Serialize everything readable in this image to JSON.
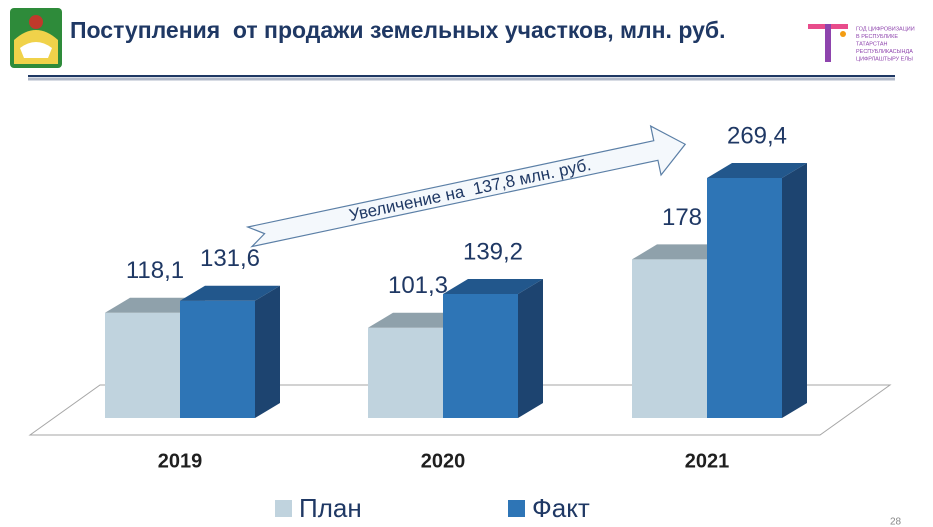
{
  "header": {
    "logo_lines": [
      "ГОД ЦИФРОВИЗАЦИИ",
      "В РЕСПУБЛИКЕ",
      "ТАТАРСТАН",
      "РЕСПУБЛИКАСЫНДА",
      "ЦИФРЛАШТЫРУ ЕЛЫ"
    ]
  },
  "chart_data": {
    "type": "bar3d",
    "title": "Поступления  от продажи земельных участков, млн. руб.",
    "annotation": "Увеличение на  137,8 млн. руб.",
    "categories": [
      "2019",
      "2020",
      "2021"
    ],
    "series": [
      {
        "name": "План",
        "color": "#c0d3de",
        "top_color": "#8fa1ab",
        "side_color": "#9fb2bd",
        "values": [
          118.1,
          101.3,
          178
        ],
        "value_labels": [
          "118,1",
          "101,3",
          "178"
        ]
      },
      {
        "name": "Факт",
        "color": "#2e75b6",
        "top_color": "#22578c",
        "side_color": "#1d4470",
        "values": [
          131.6,
          139.2,
          269.4
        ],
        "value_labels": [
          "131,6",
          "139,2",
          "269,4"
        ]
      }
    ]
  },
  "page_number": "28"
}
